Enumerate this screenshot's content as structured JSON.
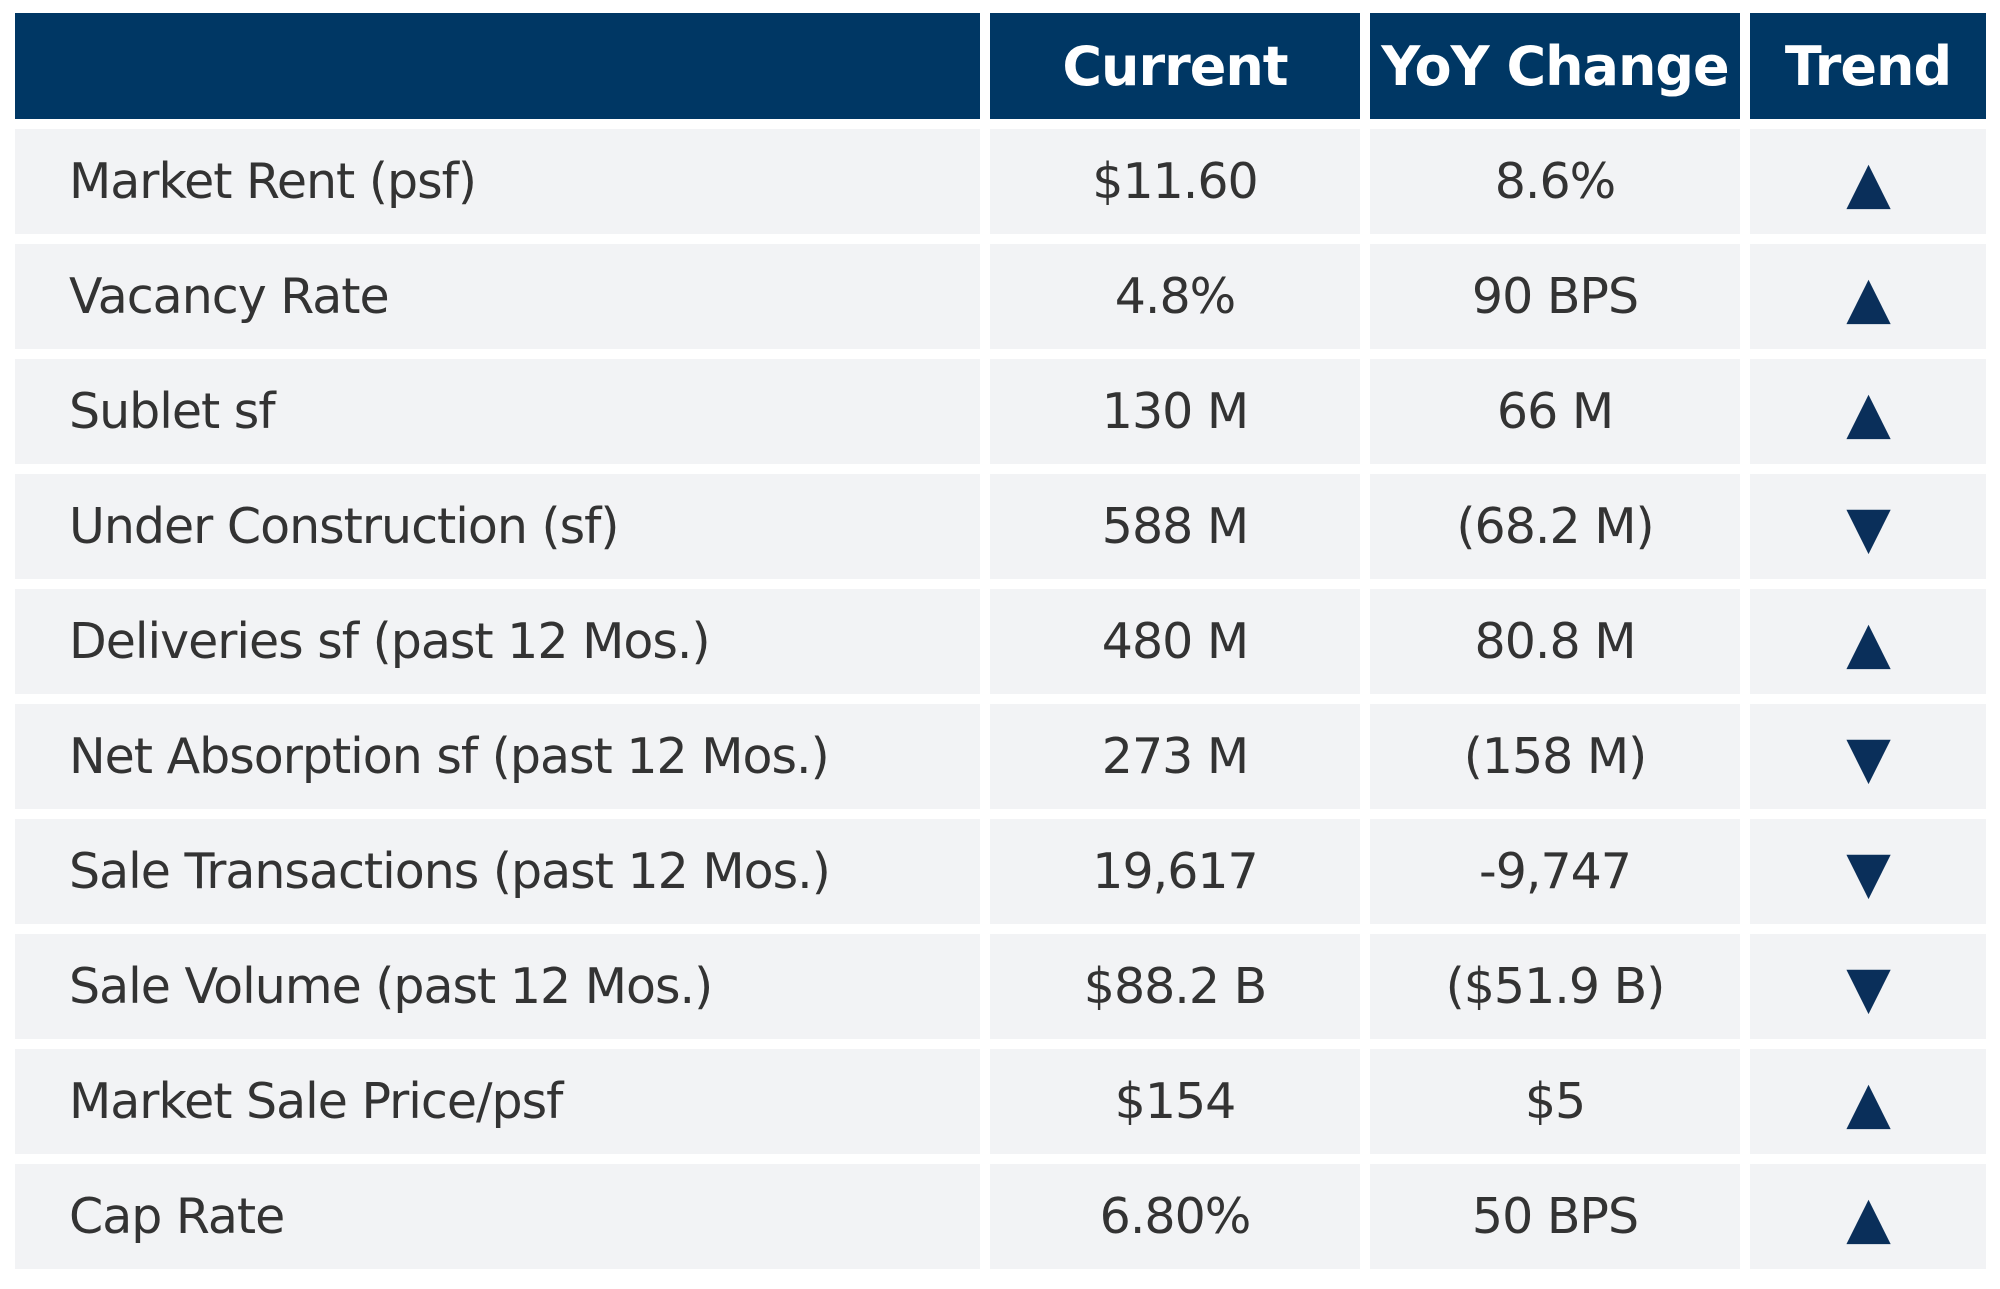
{
  "table": {
    "header": [
      "",
      "Current",
      "YoY Change",
      "Trend"
    ],
    "rows": [
      [
        "Market Rent (psf)",
        "$11.60",
        "8.6%",
        "▲"
      ],
      [
        "Vacancy Rate",
        "4.8%",
        "90 BPS",
        "▲"
      ],
      [
        "Sublet sf",
        "130 M",
        "66 M",
        "▲"
      ],
      [
        "Under Construction (sf)",
        "588 M",
        "(68.2 M)",
        "▼"
      ],
      [
        "Deliveries sf (past 12 Mos.)",
        "480 M",
        "80.8 M",
        "▲"
      ],
      [
        "Net Absorption sf (past 12 Mos.)",
        "273 M",
        "(158 M)",
        "▼"
      ],
      [
        "Sale Transactions (past 12 Mos.)",
        "19,617",
        "-9,747",
        "▼"
      ],
      [
        "Sale Volume (past 12 Mos.)",
        "$88.2 B",
        "($51.9 B)",
        "▼"
      ],
      [
        "Market Sale Price/psf",
        "$154",
        "$5",
        "▲"
      ],
      [
        "Cap Rate",
        "6.80%",
        "50 BPS",
        "▲"
      ]
    ]
  }
}
